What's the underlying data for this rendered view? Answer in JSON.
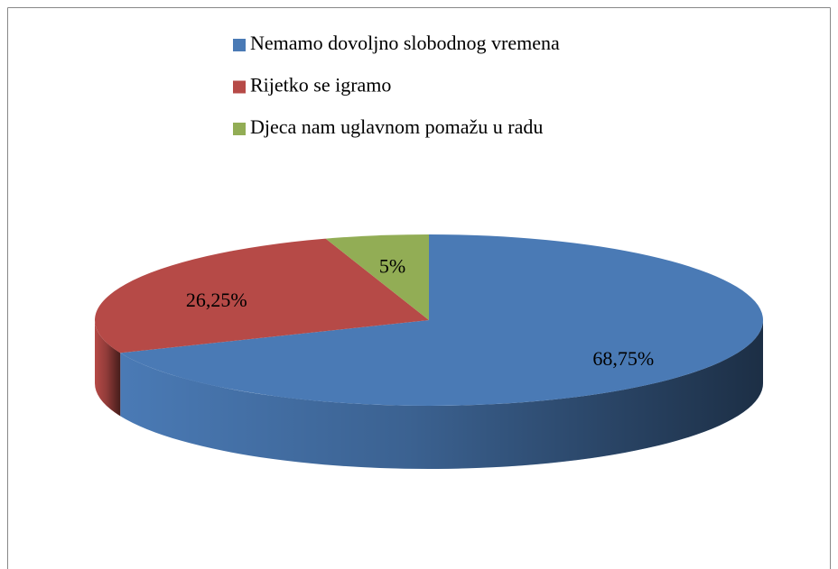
{
  "chart_data": {
    "type": "pie",
    "categories": [
      "Nemamo dovoljno slobodnog vremena",
      "Rijetko se igramo",
      "Djeca nam uglavnom pomažu u radu"
    ],
    "values": [
      68.75,
      26.25,
      5
    ],
    "value_labels": [
      "68,75%",
      "26,25%",
      "5%"
    ],
    "colors": [
      "#4a7ab5",
      "#b64a47",
      "#92ad55"
    ],
    "legend": "top"
  }
}
